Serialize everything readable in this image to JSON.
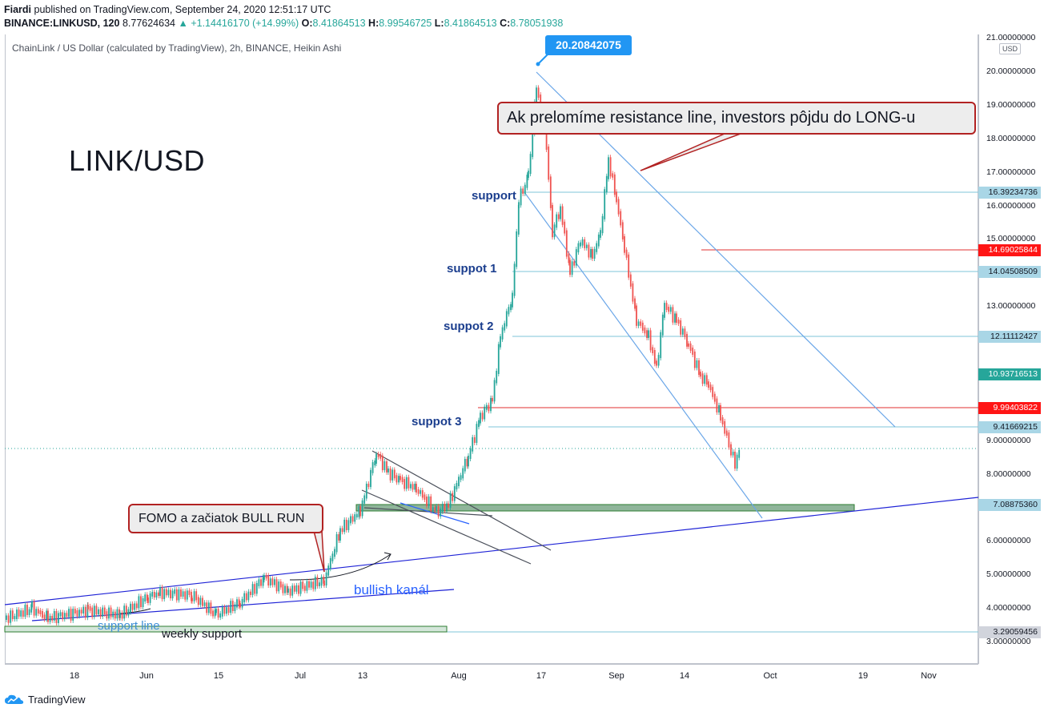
{
  "header": {
    "author": "Fiardi",
    "published": " published on TradingView.com, September 24, 2020 12:51:17 UTC",
    "symbol": "BINANCE:LINKUSD, 120",
    "last": " 8.77624634 ",
    "change": "▲ +1.14416170 (+14.99%)",
    "o_label": " O:",
    "o_val": "8.41864513",
    "h_label": " H:",
    "h_val": "8.99546725",
    "l_label": " L:",
    "l_val": "8.41864513",
    "c_label": " C:",
    "c_val": "8.78051938"
  },
  "chart": {
    "title": "ChainLink / US Dollar (calculated by TradingView), 2h, BINANCE, Heikin Ashi",
    "big_label": "LINK/USD",
    "currency": "USD",
    "peak_label": "20.20842075"
  },
  "price_axis": {
    "ticks": [
      "21.00000000",
      "20.00000000",
      "19.00000000",
      "18.00000000",
      "17.00000000",
      "16.00000000",
      "15.00000000",
      "13.00000000",
      "9.00000000",
      "8.00000000",
      "6.00000000",
      "5.00000000",
      "4.00000000",
      "3.00000000"
    ],
    "labels": {
      "l1": "16.39234736",
      "l2": "14.69025844",
      "l3": "14.04508509",
      "l4": "12.11112427",
      "l5": "10.93716513",
      "l6": "9.99403822",
      "l7": "9.41669215",
      "l8": "7.08875360",
      "l9": "3.29059456"
    }
  },
  "time_axis": {
    "labels": [
      "18",
      "Jun",
      "15",
      "Jul",
      "13",
      "Aug",
      "17",
      "Sep",
      "14",
      "Oct",
      "19",
      "Nov"
    ]
  },
  "annotations": {
    "callout_resistance": "Ak prelomíme resistance line, investors pôjdu do LONG-u",
    "callout_fomo": "FOMO a začiatok BULL RUN",
    "support": "support",
    "suppot1": "suppot 1",
    "suppot2": "suppot 2",
    "suppot3": "suppot 3",
    "bullish": "bullish kanál",
    "support_line": "support line",
    "weekly": "weekly support"
  },
  "footer": {
    "brand": "TradingView"
  },
  "colors": {
    "up": "#26a69a",
    "down": "#ef5350",
    "trend_blue": "#1e22d6",
    "light_blue": "#6aa6e8",
    "callout_border": "#b22222"
  }
}
